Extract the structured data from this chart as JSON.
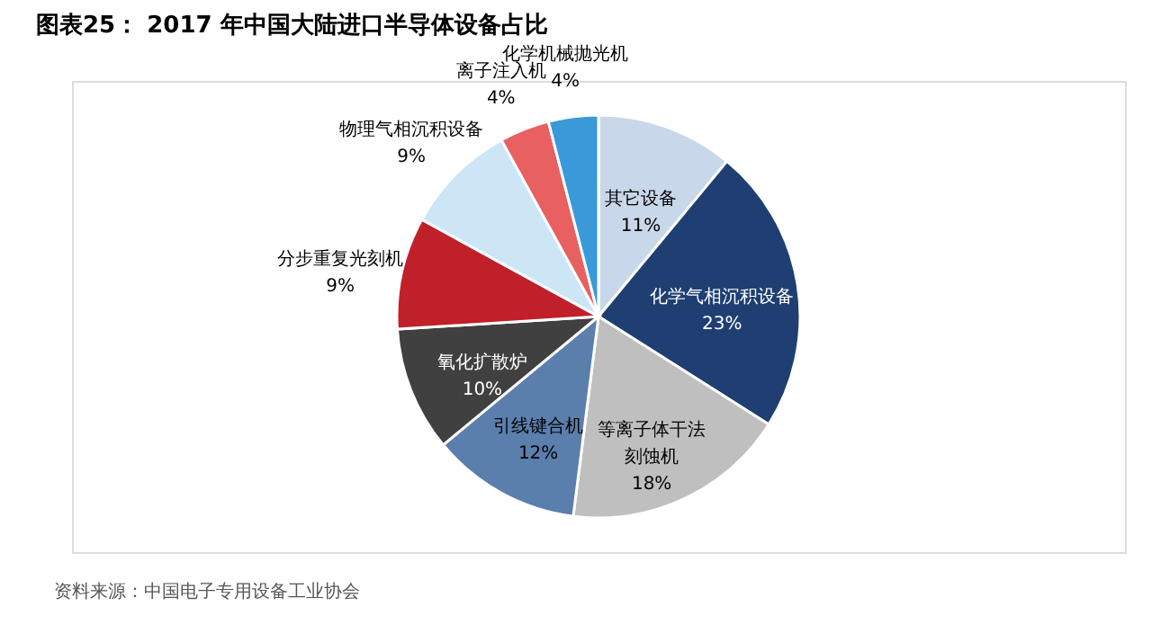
{
  "chart_data": {
    "type": "pie",
    "title": "图表25：  2017 年中国大陆进口半导体设备占比",
    "categories": [
      "其它设备",
      "化学气相沉积设备",
      "等离子体干法刻蚀机",
      "引线键合机",
      "氧化扩散炉",
      "分步重复光刻机",
      "物理气相沉积设备",
      "离子注入机",
      "化学机械抛光机"
    ],
    "values": [
      11,
      23,
      18,
      12,
      10,
      9,
      9,
      4,
      4
    ],
    "value_labels": [
      "11%",
      "23%",
      "18%",
      "12%",
      "10%",
      "9%",
      "9%",
      "4%",
      "4%"
    ],
    "colors": [
      "#c9d7ea",
      "#1f3f73",
      "#bfbfbf",
      "#5b7fad",
      "#404040",
      "#c0202a",
      "#cce6f5",
      "#e86060",
      "#3a9ad9"
    ],
    "annotations": [
      "资料来源：中国电子专用设备工业协会"
    ]
  }
}
